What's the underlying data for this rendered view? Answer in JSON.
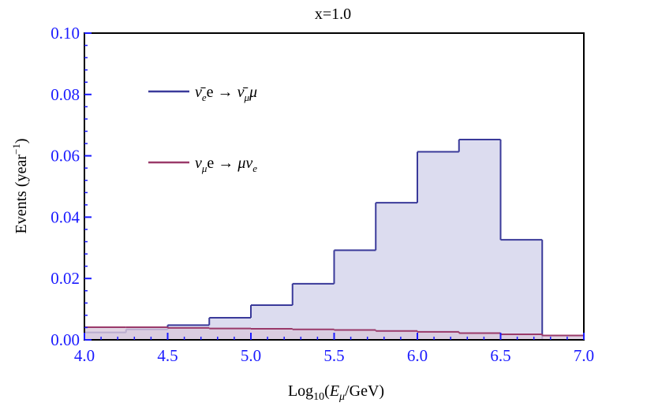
{
  "chart_data": {
    "type": "histogram",
    "title": "x=1.0",
    "xlabel": "Log₁₀(Eμ/GeV)",
    "ylabel": "Events (year⁻¹)",
    "xlim": [
      4.0,
      7.0
    ],
    "ylim": [
      0.0,
      0.1
    ],
    "x_ticks": [
      "4.0",
      "4.5",
      "5.0",
      "5.5",
      "6.0",
      "6.5",
      "7.0"
    ],
    "y_ticks": [
      "0.00",
      "0.02",
      "0.04",
      "0.06",
      "0.08",
      "0.10"
    ],
    "bin_edges": [
      4.0,
      4.25,
      4.5,
      4.75,
      5.0,
      5.25,
      5.5,
      5.75,
      6.0,
      6.25,
      6.5,
      6.75,
      7.0
    ],
    "legend_position": "top-left",
    "series": [
      {
        "name": "ν̄e e → ν̄μ μ",
        "color": "#3a3a9a",
        "fill": "#dcdcef",
        "values": [
          0.0024,
          0.0034,
          0.0048,
          0.0072,
          0.0113,
          0.0183,
          0.0292,
          0.0447,
          0.0613,
          0.0653,
          0.0326,
          0.0
        ]
      },
      {
        "name": "νμ e → μ νe",
        "color": "#9a3a6a",
        "fill": "#d9c9dc",
        "values": [
          0.0041,
          0.0041,
          0.0039,
          0.0037,
          0.0036,
          0.0034,
          0.0032,
          0.0029,
          0.0026,
          0.0022,
          0.0018,
          0.0014
        ]
      }
    ]
  }
}
